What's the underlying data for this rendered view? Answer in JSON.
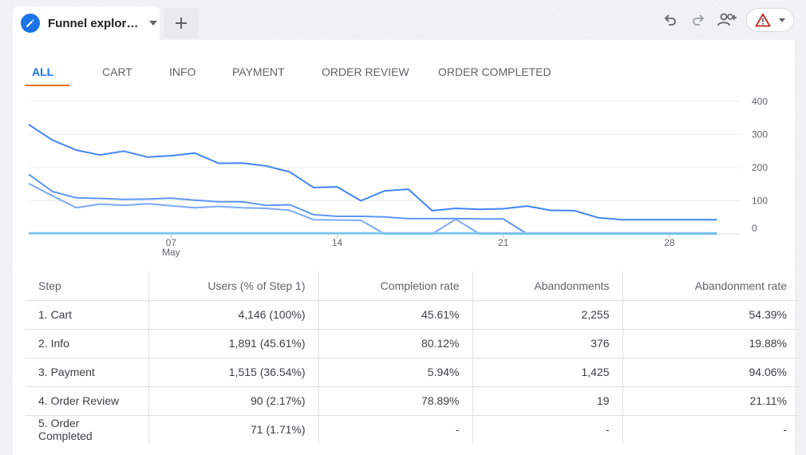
{
  "tab": {
    "title": "Funnel explor…",
    "add_label": "+"
  },
  "toolbar": {
    "undo_icon": "undo-icon",
    "redo_icon": "redo-icon",
    "share_icon": "share-users-icon",
    "warning_icon": "warning-icon"
  },
  "colors": {
    "accent": "#1a73e8",
    "active_underline": "#e8710a",
    "series": [
      "#4285f4",
      "#5e97f6",
      "#7baaf7",
      "#9fc2f9",
      "#6ec6e8"
    ]
  },
  "step_tabs": [
    {
      "label": "ALL",
      "active": true
    },
    {
      "label": "CART",
      "active": false
    },
    {
      "label": "INFO",
      "active": false
    },
    {
      "label": "PAYMENT",
      "active": false
    },
    {
      "label": "ORDER REVIEW",
      "active": false
    },
    {
      "label": "ORDER COMPLETED",
      "active": false
    }
  ],
  "chart_data": {
    "type": "line",
    "title": "",
    "xlabel": "",
    "ylabel": "",
    "ylim": [
      0,
      400
    ],
    "yticks": [
      "400",
      "300",
      "200",
      "100",
      "0"
    ],
    "ytick_values": [
      400,
      300,
      200,
      100,
      0
    ],
    "x_domain": [
      1,
      31
    ],
    "xticks": [
      {
        "label": "07",
        "sublabel": "May",
        "x": 7
      },
      {
        "label": "14",
        "sublabel": "",
        "x": 14
      },
      {
        "label": "21",
        "sublabel": "",
        "x": 21
      },
      {
        "label": "28",
        "sublabel": "",
        "x": 28
      }
    ],
    "grid": true,
    "axis_position": "right",
    "series": [
      {
        "x": [
          1,
          2,
          3,
          4,
          5,
          6,
          7,
          8,
          9,
          10,
          11,
          12,
          13,
          14,
          15,
          16,
          17,
          18,
          19,
          20,
          21,
          22,
          23,
          24,
          25,
          26,
          27,
          28,
          29,
          30
        ],
        "values": [
          330,
          283,
          253,
          238,
          250,
          232,
          236,
          244,
          213,
          214,
          205,
          187,
          140,
          142,
          100,
          130,
          135,
          70,
          77,
          74,
          76,
          84,
          71,
          70,
          49,
          43,
          43,
          43,
          43,
          43
        ]
      },
      {
        "x": [
          1,
          2,
          3,
          4,
          5,
          6,
          7,
          8,
          9,
          10,
          11,
          12,
          13,
          14,
          15,
          16,
          17,
          18,
          19,
          20,
          21,
          22,
          23,
          24,
          25,
          26,
          27,
          28,
          29,
          30
        ],
        "values": [
          180,
          128,
          109,
          107,
          104,
          105,
          108,
          102,
          97,
          97,
          86,
          88,
          58,
          53,
          53,
          51,
          46,
          46,
          46,
          45,
          45,
          0,
          0,
          0,
          0,
          0,
          0,
          0,
          0,
          0
        ]
      },
      {
        "x": [
          1,
          2,
          3,
          4,
          5,
          6,
          7,
          8,
          9,
          10,
          11,
          12,
          13,
          14,
          15,
          16,
          17,
          18,
          19,
          20,
          21,
          22,
          23,
          24,
          25,
          26,
          27,
          28,
          29,
          30
        ],
        "values": [
          152,
          115,
          79,
          90,
          86,
          91,
          85,
          79,
          83,
          79,
          77,
          71,
          43,
          42,
          41,
          0,
          0,
          0,
          44,
          0,
          0,
          0,
          0,
          0,
          0,
          0,
          0,
          0,
          0,
          0
        ]
      },
      {
        "x": [
          1,
          2,
          3,
          4,
          5,
          6,
          7,
          8,
          9,
          10,
          11,
          12,
          13,
          14,
          15,
          16,
          17,
          18,
          19,
          20,
          21,
          22,
          23,
          24,
          25,
          26,
          27,
          28,
          29,
          30
        ],
        "values": [
          3,
          3,
          3,
          3,
          3,
          3,
          3,
          3,
          3,
          3,
          3,
          3,
          3,
          3,
          3,
          3,
          3,
          3,
          3,
          3,
          3,
          3,
          3,
          3,
          3,
          3,
          3,
          3,
          3,
          3
        ]
      },
      {
        "x": [
          1,
          2,
          3,
          4,
          5,
          6,
          7,
          8,
          9,
          10,
          11,
          12,
          13,
          14,
          15,
          16,
          17,
          18,
          19,
          20,
          21,
          22,
          23,
          24,
          25,
          26,
          27,
          28,
          29,
          30
        ],
        "values": [
          1,
          1,
          1,
          1,
          1,
          1,
          1,
          1,
          1,
          1,
          1,
          1,
          1,
          1,
          1,
          1,
          1,
          1,
          1,
          1,
          1,
          1,
          1,
          1,
          1,
          1,
          1,
          1,
          1,
          1
        ]
      }
    ]
  },
  "table": {
    "headers": [
      "Step",
      "Users (% of Step 1)",
      "Completion rate",
      "Abandonments",
      "Abandonment rate"
    ],
    "rows": [
      [
        "1. Cart",
        "4,146 (100%)",
        "45.61%",
        "2,255",
        "54.39%"
      ],
      [
        "2. Info",
        "1,891 (45.61%)",
        "80.12%",
        "376",
        "19.88%"
      ],
      [
        "3. Payment",
        "1,515 (36.54%)",
        "5.94%",
        "1,425",
        "94.06%"
      ],
      [
        "4. Order Review",
        "90 (2.17%)",
        "78.89%",
        "19",
        "21.11%"
      ],
      [
        "5. Order Completed",
        "71 (1.71%)",
        "-",
        "-",
        "-"
      ]
    ]
  }
}
